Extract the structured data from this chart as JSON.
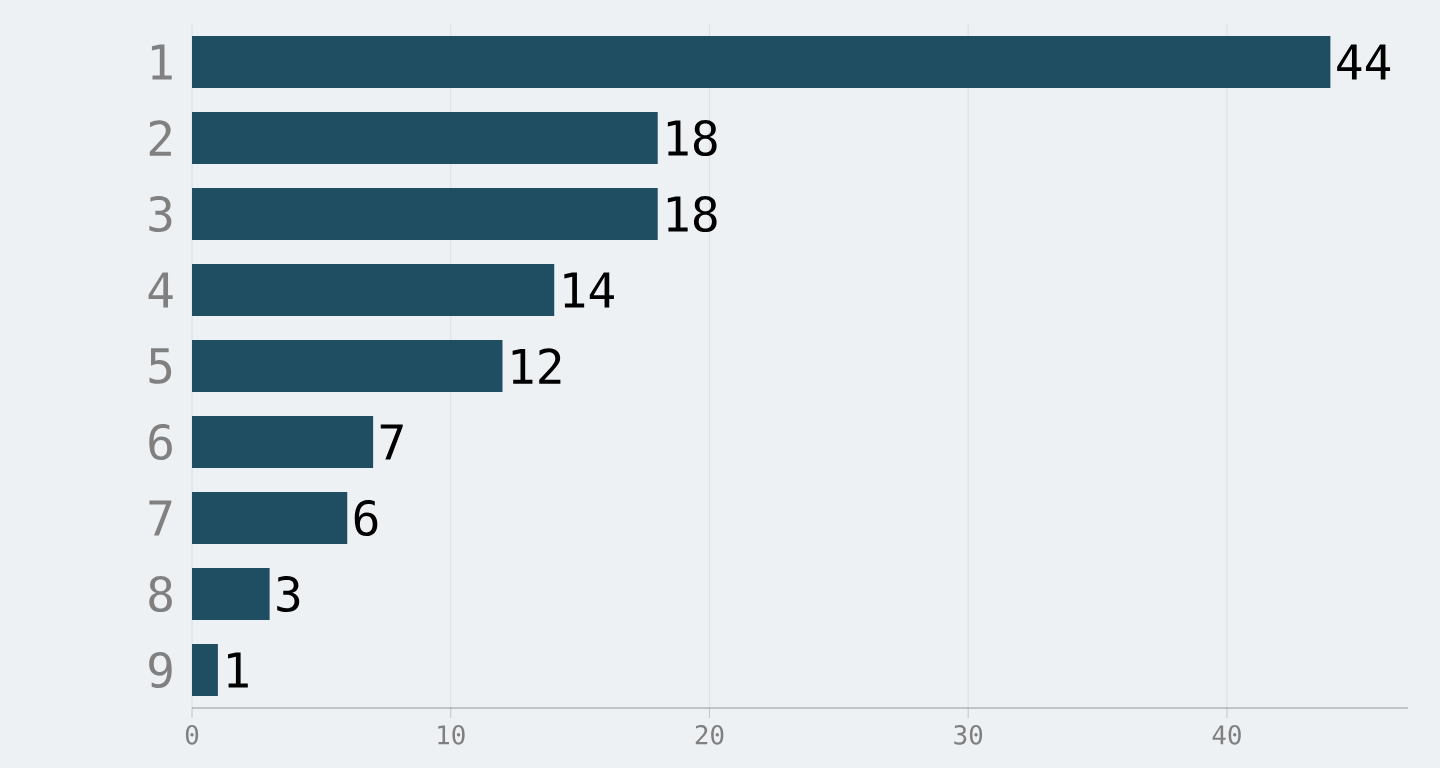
{
  "chart_data": {
    "type": "bar",
    "orientation": "horizontal",
    "categories": [
      "1",
      "2",
      "3",
      "4",
      "5",
      "6",
      "7",
      "8",
      "9"
    ],
    "values": [
      44,
      18,
      18,
      14,
      12,
      7,
      6,
      3,
      1
    ],
    "color": "#1f4d62",
    "xlim": [
      0,
      47
    ],
    "xticks": [
      0,
      10,
      20,
      30,
      40
    ],
    "grid": "x",
    "data_labels": true
  }
}
